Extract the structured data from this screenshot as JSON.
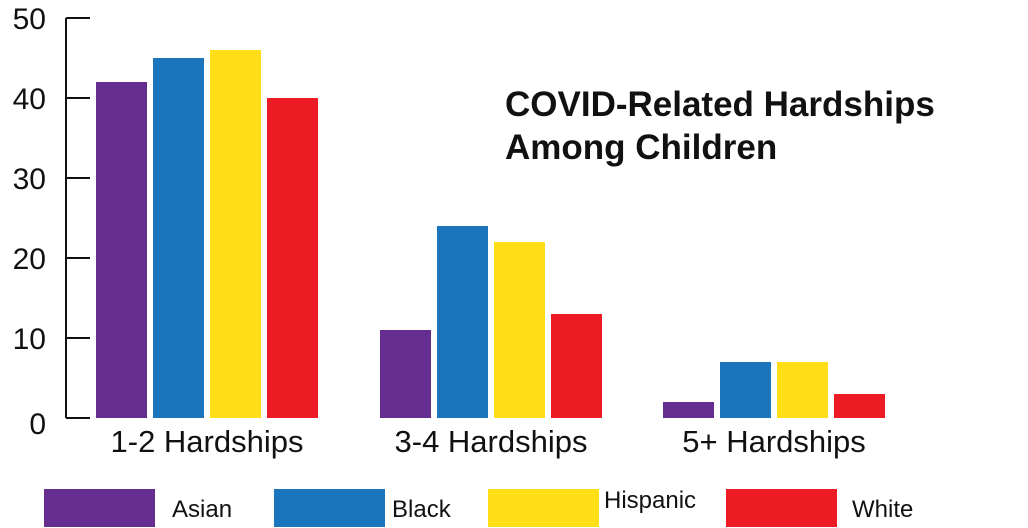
{
  "chart_data": {
    "type": "bar",
    "title_lines": [
      "COVID-Related Hardships",
      "Among Children"
    ],
    "xlabel": "",
    "ylabel": "",
    "ylim": [
      0,
      50
    ],
    "yticks": [
      "0",
      "10",
      "20",
      "30",
      "40",
      "50"
    ],
    "grid": false,
    "legend_position": "bottom",
    "categories": [
      "1-2 Hardships",
      "3-4 Hardships",
      "5+ Hardships"
    ],
    "series": [
      {
        "name": "Asian",
        "color": "#662d91",
        "values": [
          42,
          11,
          2
        ]
      },
      {
        "name": "Black",
        "color": "#1b75bc",
        "values": [
          45,
          24,
          7
        ]
      },
      {
        "name": "Hispanic",
        "color": "#ffde17",
        "values": [
          46,
          22,
          7
        ]
      },
      {
        "name": "White",
        "color": "#ed1c24",
        "values": [
          40,
          13,
          3
        ]
      }
    ]
  }
}
